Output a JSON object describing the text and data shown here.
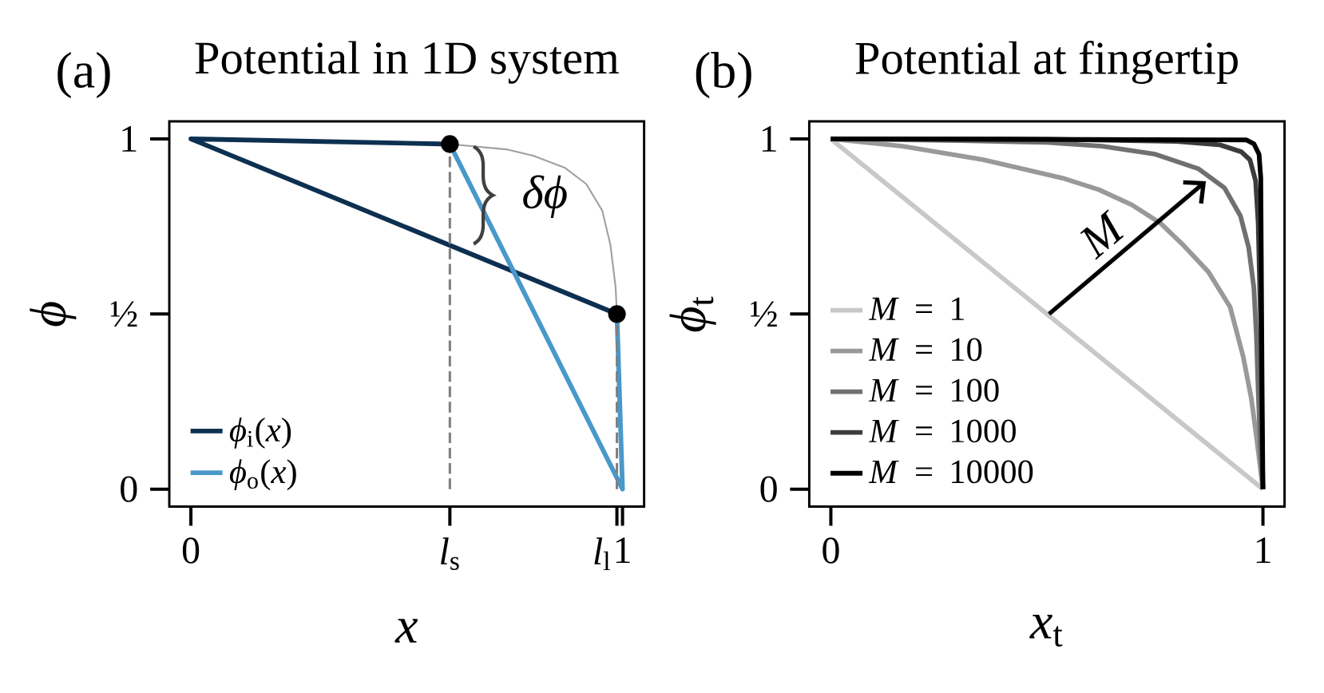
{
  "chart_data": [
    {
      "type": "line",
      "title": "Potential in 1D system",
      "xlabel": "*x*",
      "ylabel": "*ϕ*",
      "xlim": [
        -0.05,
        1.05
      ],
      "ylim": [
        -0.05,
        1.05
      ],
      "xticks": [
        0,
        {
          "value": 0.6,
          "label": "*l*$_{s}$"
        },
        {
          "value": 0.987,
          "label": "*l*$_{l}$"
        },
        1
      ],
      "yticks": [
        0,
        {
          "value": 0.5,
          "label": "½"
        },
        1
      ],
      "legend": "bottom left",
      "annotations": [
        "(a)",
        "*δϕ*"
      ],
      "series": [
        {
          "name": "*ϕ*$_{i}$(*x*)",
          "color": "#0d3050",
          "x": [
            0.6,
            0,
            0.987
          ],
          "values": [
            0.985,
            1,
            0.5
          ]
        },
        {
          "name": "*ϕ*$_{o}$(*x*)",
          "color": "#4a98c9",
          "x": [
            0.6,
            1,
            0.987
          ],
          "values": [
            0.985,
            0,
            0.5
          ]
        },
        {
          "color": "#a0a0a0",
          "x": [
            0.6,
            0.731,
            0.793,
            0.867,
            0.916,
            0.953,
            0.972,
            0.984,
            0.987
          ],
          "values": [
            0.985,
            0.97,
            0.952,
            0.917,
            0.871,
            0.795,
            0.697,
            0.576,
            0.5
          ]
        },
        {
          "type": "lollipop",
          "marker": "circle",
          "line_style": "dashed",
          "color": "#000000",
          "x": [
            0.6,
            0.987
          ],
          "values": [
            0.985,
            0.5
          ]
        }
      ]
    },
    {
      "type": "line",
      "title": "Potential at fingertip",
      "xlabel": "*x*$_{t}$",
      "ylabel": "*ϕ*$_{t}$",
      "xlim": [
        -0.05,
        1.05
      ],
      "ylim": [
        -0.05,
        1.05
      ],
      "xticks": [
        0,
        1
      ],
      "yticks": [
        0,
        {
          "value": 0.5,
          "label": "½"
        },
        1
      ],
      "legend": "bottom left",
      "annotations": [
        "(b)",
        "*M*"
      ],
      "series": [
        {
          "name": "*M* = 1",
          "color": "#c8c8c8",
          "x": [
            0,
            1
          ],
          "values": [
            1,
            0
          ]
        },
        {
          "name": "*M* = 10",
          "color": "#999999",
          "x": [
            0,
            0.166,
            0.351,
            0.536,
            0.62,
            0.696,
            0.764,
            0.813,
            0.874,
            0.924,
            0.954,
            0.973,
            0.985,
            1
          ],
          "values": [
            1,
            0.979,
            0.941,
            0.888,
            0.855,
            0.812,
            0.758,
            0.7,
            0.62,
            0.52,
            0.38,
            0.26,
            0.15,
            0
          ]
        },
        {
          "name": "*M* = 100",
          "color": "#707070",
          "x": [
            0,
            0.3,
            0.5,
            0.628,
            0.751,
            0.85,
            0.911,
            0.948,
            0.967,
            0.979,
            0.985,
            0.989,
            0.994,
            1
          ],
          "values": [
            1,
            0.995,
            0.99,
            0.979,
            0.956,
            0.915,
            0.86,
            0.78,
            0.69,
            0.575,
            0.434,
            0.282,
            0.12,
            0
          ]
        },
        {
          "name": "*M* = 1000",
          "color": "#3c3c3c",
          "x": [
            0,
            0.5,
            0.8,
            0.9,
            0.95,
            0.97,
            0.983,
            0.989,
            0.995,
            0.998,
            1
          ],
          "values": [
            1,
            0.999,
            0.993,
            0.983,
            0.963,
            0.94,
            0.88,
            0.76,
            0.45,
            0.13,
            0
          ]
        },
        {
          "name": "*M* = 10000",
          "color": "#000000",
          "x": [
            0,
            0.961,
            0.979,
            0.991,
            0.995,
            0.998,
            1
          ],
          "values": [
            1,
            0.997,
            0.986,
            0.956,
            0.888,
            0.3,
            0
          ]
        }
      ]
    }
  ]
}
